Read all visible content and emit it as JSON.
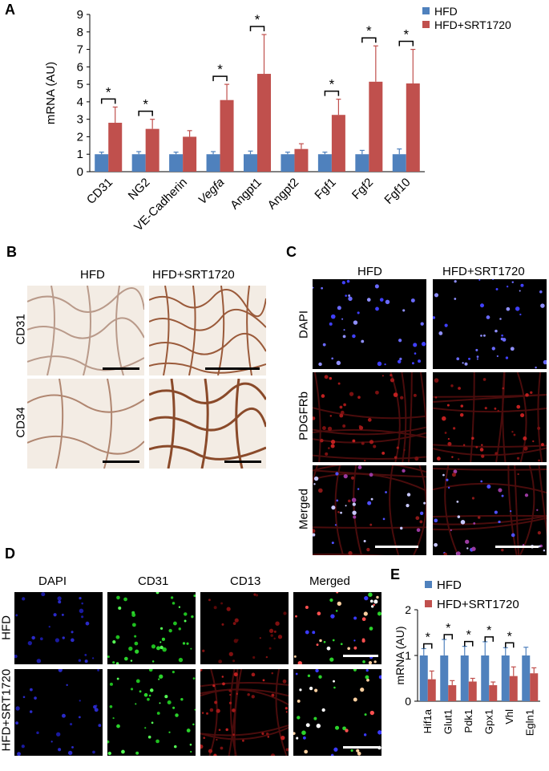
{
  "panels": {
    "A": "A",
    "B": "B",
    "C": "C",
    "D": "D",
    "E": "E"
  },
  "colors": {
    "hfd": "#4f81bd",
    "srt": "#c0504d",
    "dapi": "#3a3aff",
    "pdgfrb": "#a01818",
    "cd31": "#2bd22b",
    "cd13": "#ff3030",
    "histo_bg": "#f3ece4",
    "histo_stain": "#8a4a2a"
  },
  "panel_b": {
    "col_labels": [
      "HFD",
      "HFD+SRT1720"
    ],
    "row_labels": [
      "CD31",
      "CD34"
    ]
  },
  "panel_c": {
    "col_labels": [
      "HFD",
      "HFD+SRT1720"
    ],
    "row_labels": [
      "DAPI",
      "PDGFRb",
      "Merged"
    ]
  },
  "panel_d": {
    "col_labels": [
      "DAPI",
      "CD31",
      "CD13",
      "Merged"
    ],
    "row_labels": [
      "HFD",
      "HFD+SRT1720"
    ]
  },
  "chart_data": [
    {
      "type": "bar",
      "panel": "A",
      "ylabel": "mRNA (AU)",
      "ylim": [
        0,
        9
      ],
      "yticks": [
        0,
        1,
        2,
        3,
        4,
        5,
        6,
        7,
        8,
        9
      ],
      "categories": [
        "CD31",
        "NG2",
        "VE-Cadherin",
        "Vegfa",
        "Angpt1",
        "Angpt2",
        "Fgf1",
        "Fgf2",
        "Fgf10"
      ],
      "categories_italic": [
        false,
        false,
        false,
        true,
        false,
        false,
        false,
        false,
        false
      ],
      "series": [
        {
          "name": "HFD",
          "values": [
            1,
            1,
            1,
            1,
            1,
            1,
            1,
            1,
            1
          ],
          "errors": [
            0.12,
            0.15,
            0.12,
            0.15,
            0.18,
            0.12,
            0.12,
            0.22,
            0.3
          ]
        },
        {
          "name": "HFD+SRT1720",
          "values": [
            2.8,
            2.45,
            2.0,
            4.1,
            5.6,
            1.3,
            3.25,
            5.15,
            5.05
          ],
          "errors": [
            0.9,
            0.55,
            0.35,
            0.9,
            2.25,
            0.3,
            0.9,
            2.05,
            1.95
          ]
        }
      ],
      "significance": [
        true,
        true,
        false,
        true,
        true,
        false,
        true,
        true,
        true
      ],
      "sig_label": "*",
      "legend_position": "top-right"
    },
    {
      "type": "bar",
      "panel": "E",
      "ylabel": "mRNA (AU)",
      "ylim": [
        0,
        2
      ],
      "yticks": [
        0,
        1,
        2
      ],
      "categories": [
        "Hif1a",
        "Glut1",
        "Pdk1",
        "Gpx1",
        "Vhl",
        "Egln1"
      ],
      "series": [
        {
          "name": "HFD",
          "values": [
            1,
            1,
            1,
            1,
            1,
            1
          ],
          "errors": [
            0.15,
            0.35,
            0.2,
            0.3,
            0.17,
            0.18
          ]
        },
        {
          "name": "HFD+SRT1720",
          "values": [
            0.48,
            0.35,
            0.43,
            0.35,
            0.55,
            0.61
          ],
          "errors": [
            0.18,
            0.1,
            0.07,
            0.07,
            0.2,
            0.12
          ]
        }
      ],
      "significance": [
        true,
        true,
        true,
        true,
        true,
        false
      ],
      "sig_label": "*",
      "legend_position": "top-right"
    }
  ]
}
